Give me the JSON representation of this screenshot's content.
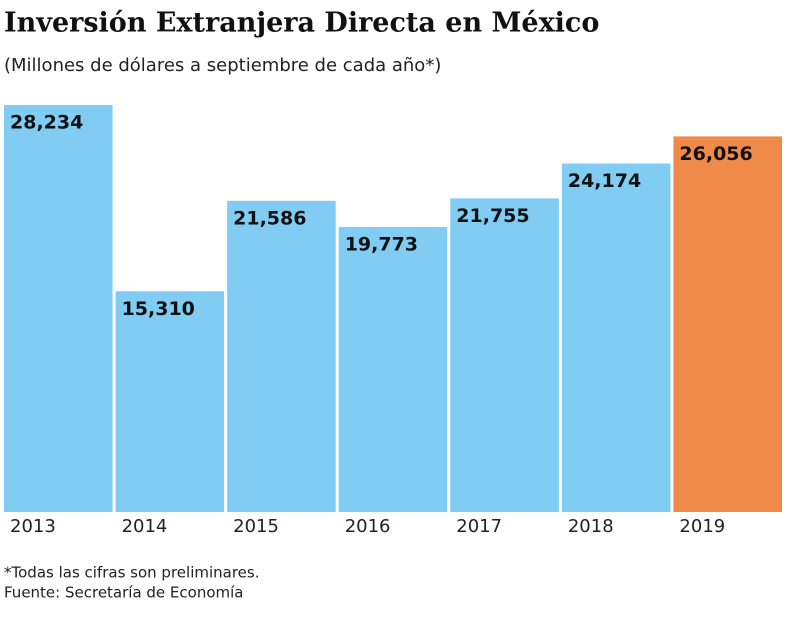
{
  "chart_data": {
    "type": "bar",
    "title": "Inversión Extranjera Directa en México",
    "subtitle": "(Millones de dólares a septiembre de cada año*)",
    "categories": [
      "2013",
      "2014",
      "2015",
      "2016",
      "2017",
      "2018",
      "2019"
    ],
    "values": [
      28234,
      15310,
      21586,
      19773,
      21755,
      24174,
      26056
    ],
    "value_labels": [
      "28,234",
      "15,310",
      "21,586",
      "19,773",
      "21,755",
      "24,174",
      "26,056"
    ],
    "colors": [
      "#80ccf3",
      "#80ccf3",
      "#80ccf3",
      "#80ccf3",
      "#80ccf3",
      "#80ccf3",
      "#f08a48"
    ],
    "notes": [
      "*Todas las cifras son preliminares.",
      "Fuente: Secretaría de Economía"
    ]
  }
}
